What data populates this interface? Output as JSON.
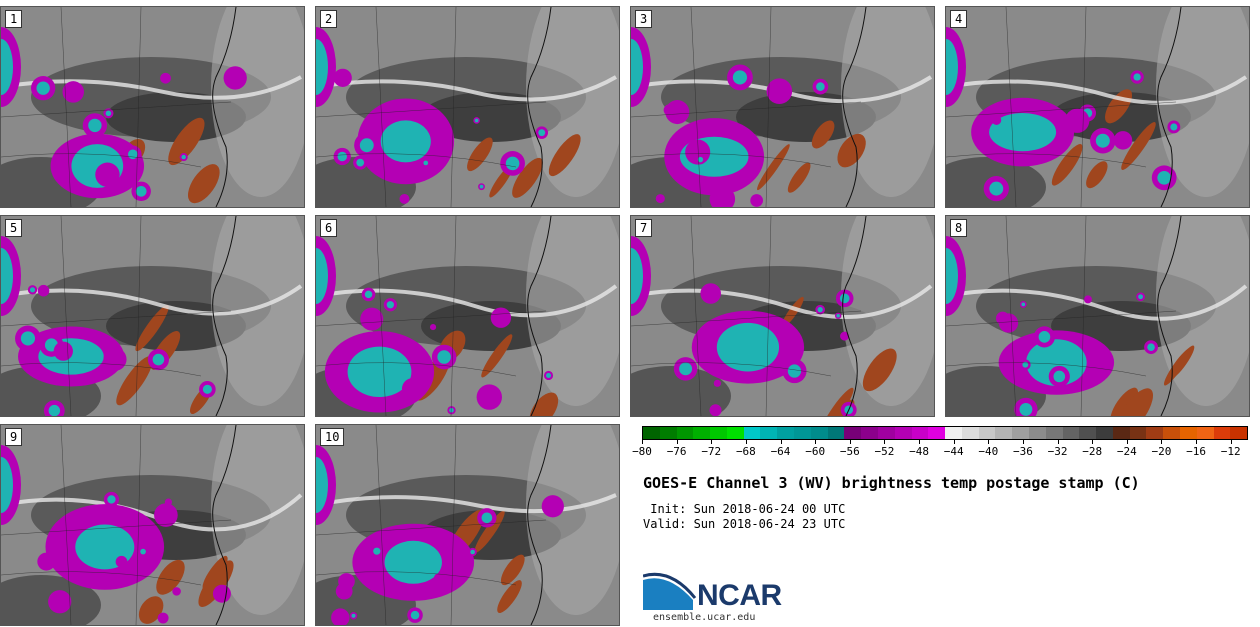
{
  "panels": [
    {
      "label": "1"
    },
    {
      "label": "2"
    },
    {
      "label": "3"
    },
    {
      "label": "4"
    },
    {
      "label": "5"
    },
    {
      "label": "6"
    },
    {
      "label": "7"
    },
    {
      "label": "8"
    },
    {
      "label": "9"
    },
    {
      "label": "10"
    }
  ],
  "colorbar": {
    "colors": [
      "#006400",
      "#007d00",
      "#009600",
      "#00b000",
      "#00c800",
      "#00e000",
      "#00c8c8",
      "#00b4b4",
      "#00a0a0",
      "#009696",
      "#008c8c",
      "#007878",
      "#780078",
      "#8c008c",
      "#a000a0",
      "#b400b4",
      "#c800c8",
      "#e000e0",
      "#f0f0f0",
      "#dcdcdc",
      "#c8c8c8",
      "#b4b4b4",
      "#a0a0a0",
      "#8c8c8c",
      "#787878",
      "#646464",
      "#505050",
      "#3c3c3c",
      "#5a2814",
      "#783214",
      "#a03c14",
      "#c8500a",
      "#e66400",
      "#f06414",
      "#dc3c0a",
      "#c83200"
    ],
    "ticks": [
      "−80",
      "−76",
      "−72",
      "−68",
      "−64",
      "−60",
      "−56",
      "−52",
      "−48",
      "−44",
      "−40",
      "−36",
      "−32",
      "−28",
      "−24",
      "−20",
      "−16",
      "−12"
    ],
    "min": -80,
    "max": -10
  },
  "title": "GOES-E Channel 3 (WV) brightness temp postage stamp (C)",
  "init": " Init: Sun 2018-06-24 00 UTC",
  "valid": "Valid: Sun 2018-06-24 23 UTC",
  "logo": {
    "text": "NCAR",
    "url": "ensemble.ucar.edu"
  }
}
